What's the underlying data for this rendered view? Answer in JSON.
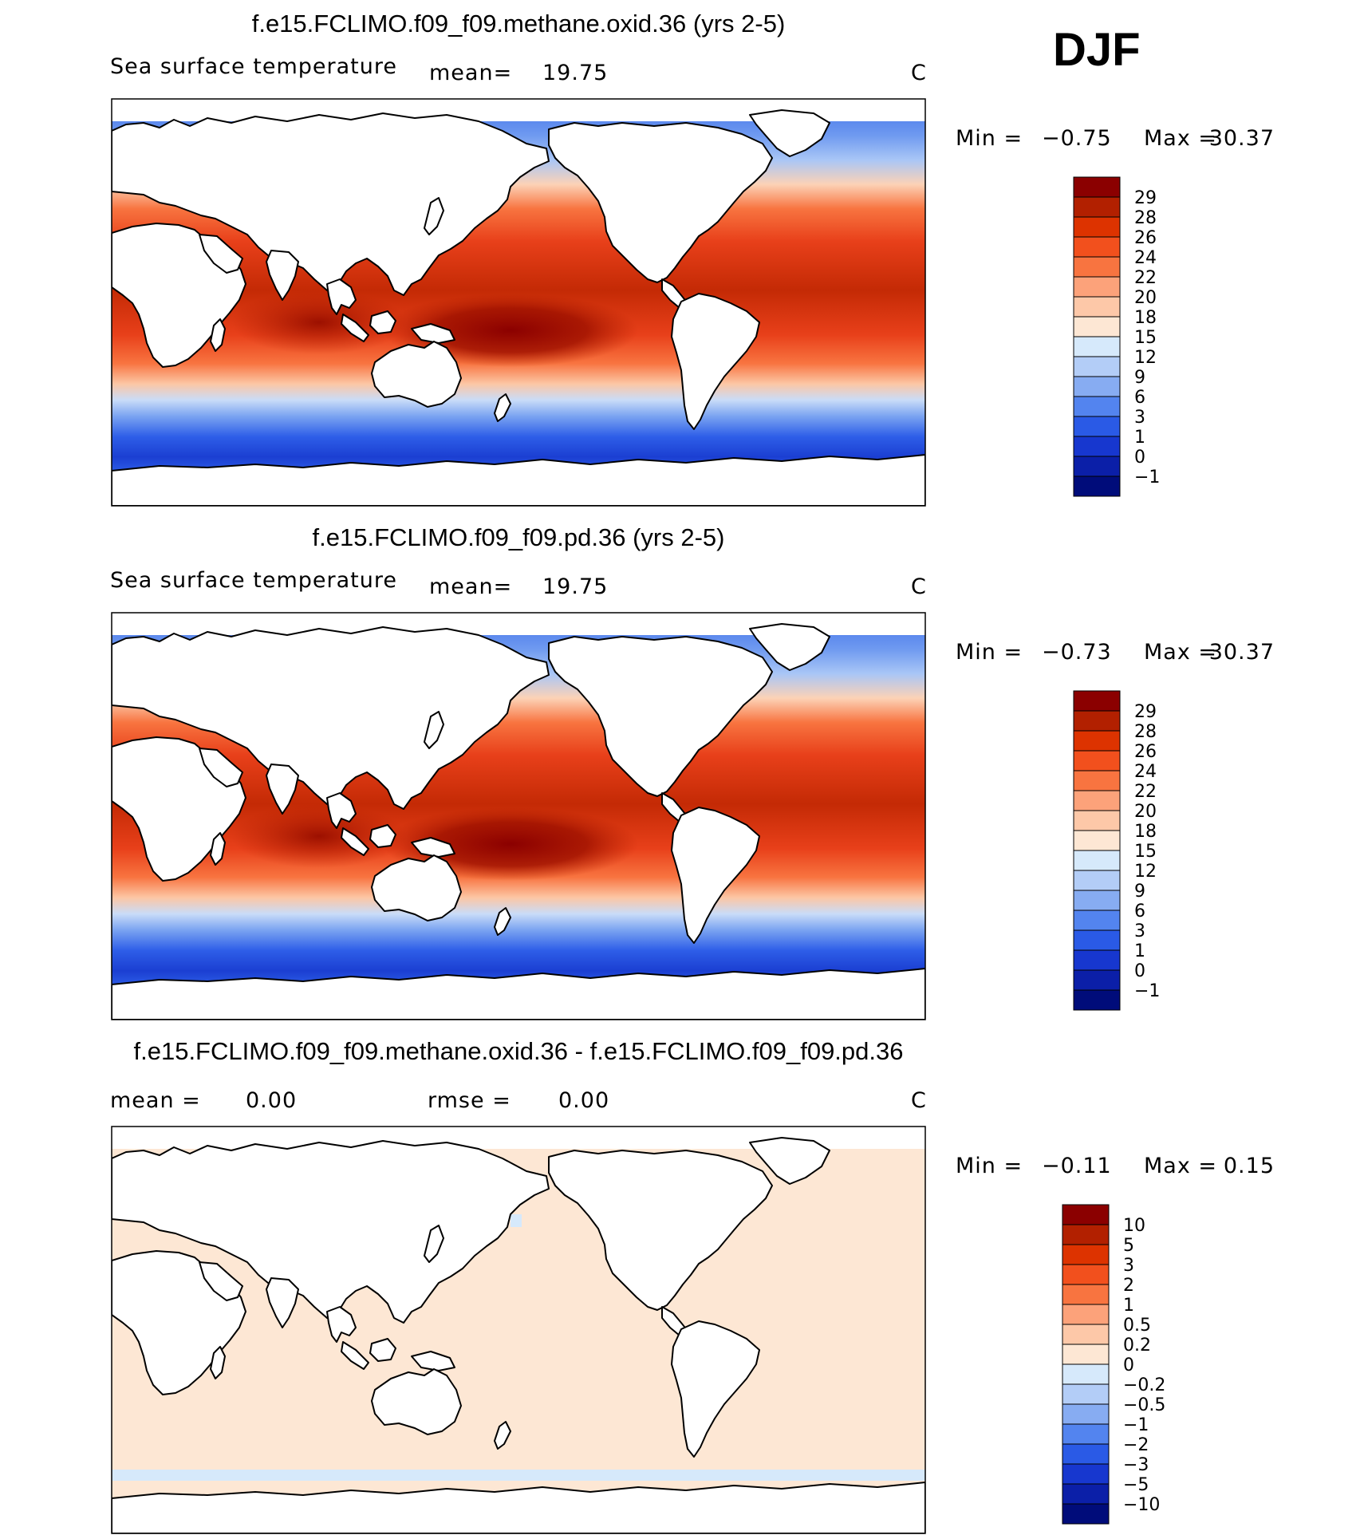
{
  "season": "DJF",
  "land_color": "#ffffff",
  "panels": [
    {
      "title": "f.e15.FCLIMO.f09_f09.methane.oxid.36 (yrs 2-5)",
      "variable": "Sea surface temperature",
      "stat1_label": "mean=",
      "stat1_value": "19.75",
      "stat2_label": "",
      "stat2_value": "",
      "units": "C",
      "min_label": "Min  =",
      "min_value": "−0.75",
      "max_label": "Max  =",
      "max_value": "30.37",
      "field": "sst",
      "colorbar": {
        "levels": [
          "29",
          "28",
          "26",
          "24",
          "22",
          "20",
          "18",
          "15",
          "12",
          "9",
          "6",
          "3",
          "1",
          "0",
          "−1"
        ],
        "colors": [
          "#8b0000",
          "#b22000",
          "#dd3300",
          "#f2501d",
          "#f87440",
          "#fca27a",
          "#fdc8a8",
          "#fde7d4",
          "#d6e9fb",
          "#b3cdf7",
          "#87acf2",
          "#5384ef",
          "#2a5ae6",
          "#1737cf",
          "#0b1fa8",
          "#000c7a"
        ]
      }
    },
    {
      "title": "f.e15.FCLIMO.f09_f09.pd.36 (yrs 2-5)",
      "variable": "Sea surface temperature",
      "stat1_label": "mean=",
      "stat1_value": "19.75",
      "stat2_label": "",
      "stat2_value": "",
      "units": "C",
      "min_label": "Min  =",
      "min_value": "−0.73",
      "max_label": "Max  =",
      "max_value": "30.37",
      "field": "sst",
      "colorbar": {
        "levels": [
          "29",
          "28",
          "26",
          "24",
          "22",
          "20",
          "18",
          "15",
          "12",
          "9",
          "6",
          "3",
          "1",
          "0",
          "−1"
        ],
        "colors": [
          "#8b0000",
          "#b22000",
          "#dd3300",
          "#f2501d",
          "#f87440",
          "#fca27a",
          "#fdc8a8",
          "#fde7d4",
          "#d6e9fb",
          "#b3cdf7",
          "#87acf2",
          "#5384ef",
          "#2a5ae6",
          "#1737cf",
          "#0b1fa8",
          "#000c7a"
        ]
      }
    },
    {
      "title": "f.e15.FCLIMO.f09_f09.methane.oxid.36 - f.e15.FCLIMO.f09_f09.pd.36",
      "variable": "",
      "stat1_label": "mean =",
      "stat1_value": "0.00",
      "stat2_label": "rmse =",
      "stat2_value": "0.00",
      "units": "C",
      "min_label": "Min  =",
      "min_value": "−0.11",
      "max_label": "Max  =",
      "max_value": "0.15",
      "field": "diff",
      "colorbar": {
        "levels": [
          "10",
          "5",
          "3",
          "2",
          "1",
          "0.5",
          "0.2",
          "0",
          "−0.2",
          "−0.5",
          "−1",
          "−2",
          "−3",
          "−5",
          "−10"
        ],
        "colors": [
          "#8b0000",
          "#b22000",
          "#dd3300",
          "#f2501d",
          "#f87440",
          "#fca27a",
          "#fdc8a8",
          "#fde7d4",
          "#d6e9fb",
          "#b3cdf7",
          "#87acf2",
          "#5384ef",
          "#2a5ae6",
          "#1737cf",
          "#0b1fa8",
          "#000c7a"
        ]
      }
    }
  ]
}
